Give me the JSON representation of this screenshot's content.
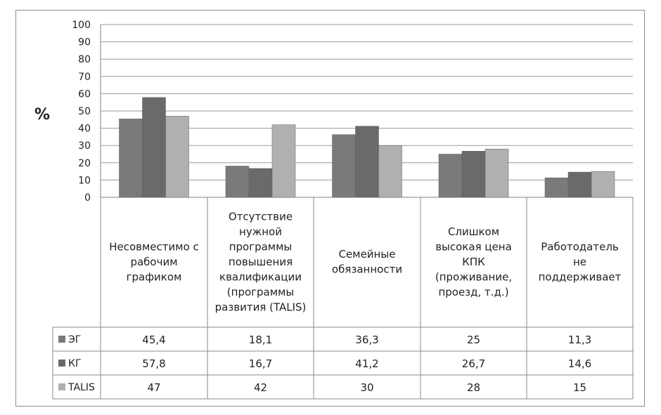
{
  "chart_data": {
    "type": "bar",
    "ylabel": "%",
    "ylim": [
      0,
      100
    ],
    "yticks": [
      "100",
      "90",
      "80",
      "70",
      "60",
      "50",
      "40",
      "30",
      "20",
      "10",
      "0"
    ],
    "grid": true,
    "categories": [
      [
        "Несовместимо с",
        "рабочим",
        "графиком"
      ],
      [
        "Отсутствие",
        "нужной",
        "программы",
        "повышения",
        "квалификации",
        "(программы",
        "развития (TALIS)"
      ],
      [
        "Семейные",
        "обязанности"
      ],
      [
        "Слишком",
        "высокая цена",
        "КПК",
        "(проживание,",
        "проезд, т.д.)"
      ],
      [
        "Работодатель",
        "не",
        "поддерживает"
      ]
    ],
    "series": [
      {
        "name": "ЭГ",
        "color": "#7a7a7a",
        "values": [
          45.4,
          18.1,
          36.3,
          25,
          11.3
        ],
        "labels": [
          "45,4",
          "18,1",
          "36,3",
          "25",
          "11,3"
        ]
      },
      {
        "name": "КГ",
        "color": "#6a6a6a",
        "values": [
          57.8,
          16.7,
          41.2,
          26.7,
          14.6
        ],
        "labels": [
          "57,8",
          "16,7",
          "41,2",
          "26,7",
          "14,6"
        ]
      },
      {
        "name": "TALIS",
        "color": "#b0b0b0",
        "values": [
          47,
          42,
          30,
          28,
          15
        ],
        "labels": [
          "47",
          "42",
          "30",
          "28",
          "15"
        ]
      }
    ]
  }
}
